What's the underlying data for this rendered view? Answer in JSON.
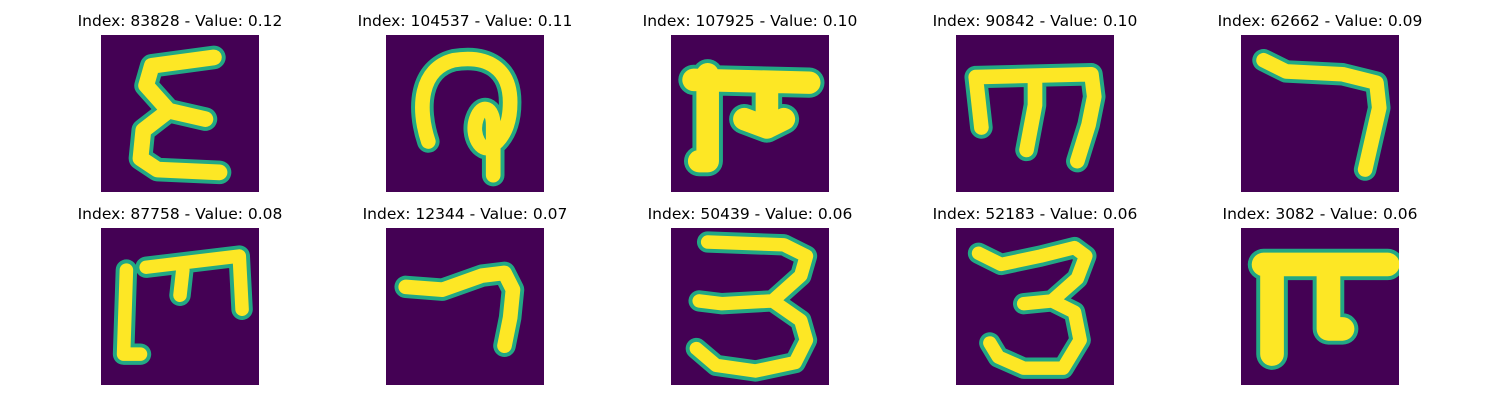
{
  "figure": {
    "colormap": "viridis",
    "background_color": "#440154",
    "stroke_color": "#fde725",
    "edge_color": "#22a884",
    "panels": [
      {
        "title": "Index: 83828 - Value: 0.12",
        "index": 83828,
        "value": 0.12,
        "glyph": "epsilon-like character"
      },
      {
        "title": "Index: 104537 - Value: 0.11",
        "index": 104537,
        "value": 0.11,
        "glyph": "loop with descender character"
      },
      {
        "title": "Index: 107925 - Value: 0.10",
        "index": 107925,
        "value": 0.1,
        "glyph": "pi-like character"
      },
      {
        "title": "Index: 90842 - Value: 0.10",
        "index": 90842,
        "value": 0.1,
        "glyph": "m-like character"
      },
      {
        "title": "Index: 62662 - Value: 0.09",
        "index": 62662,
        "value": 0.09,
        "glyph": "seven-like character"
      },
      {
        "title": "Index: 87758 - Value: 0.08",
        "index": 87758,
        "value": 0.08,
        "glyph": "m-like character (open)"
      },
      {
        "title": "Index: 12344 - Value: 0.07",
        "index": 12344,
        "value": 0.07,
        "glyph": "seven-like character"
      },
      {
        "title": "Index: 50439 - Value: 0.06",
        "index": 50439,
        "value": 0.06,
        "glyph": "three-like character"
      },
      {
        "title": "Index: 52183 - Value: 0.06",
        "index": 52183,
        "value": 0.06,
        "glyph": "three-like character"
      },
      {
        "title": "Index: 3082 - Value: 0.06",
        "index": 3082,
        "value": 0.06,
        "glyph": "pi-like character (bold)"
      }
    ]
  }
}
